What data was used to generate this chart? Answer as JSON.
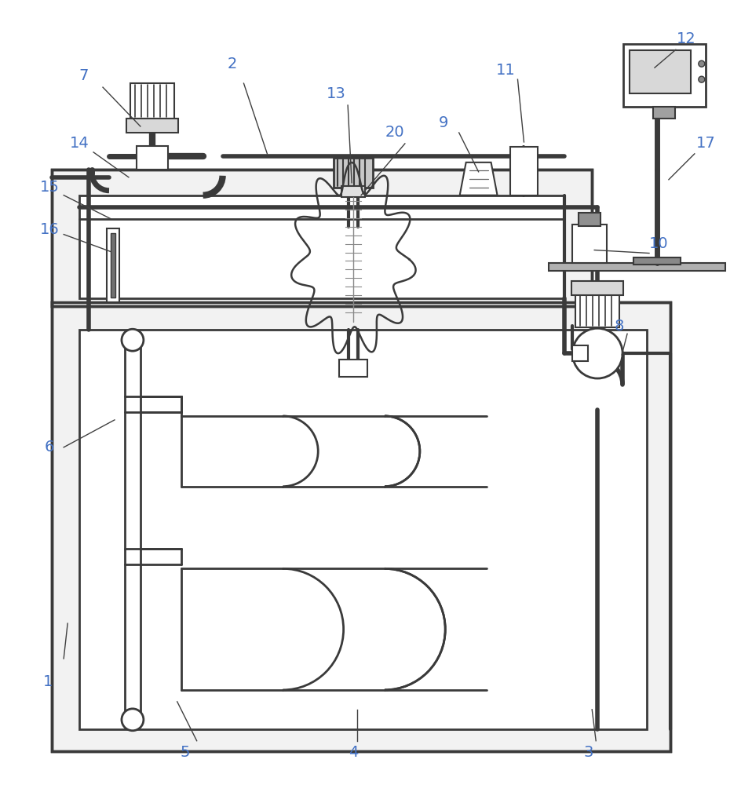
{
  "bg_color": "#ffffff",
  "lc": "#3a3a3a",
  "lc2": "#555555",
  "blue": "#4472c4",
  "figsize": [
    9.58,
    10.0
  ],
  "dpi": 100,
  "labels": [
    [
      "1",
      60,
      870
    ],
    [
      "2",
      295,
      80
    ],
    [
      "3",
      750,
      960
    ],
    [
      "4",
      450,
      960
    ],
    [
      "5",
      235,
      960
    ],
    [
      "6",
      62,
      570
    ],
    [
      "7",
      105,
      95
    ],
    [
      "8",
      790,
      415
    ],
    [
      "9",
      565,
      155
    ],
    [
      "10",
      840,
      310
    ],
    [
      "11",
      645,
      88
    ],
    [
      "12",
      875,
      48
    ],
    [
      "13",
      428,
      118
    ],
    [
      "14",
      100,
      182
    ],
    [
      "15",
      62,
      238
    ],
    [
      "16",
      62,
      292
    ],
    [
      "17",
      900,
      182
    ],
    [
      "20",
      503,
      168
    ]
  ],
  "leader_lines": [
    [
      "1",
      80,
      840,
      85,
      795
    ],
    [
      "2",
      310,
      105,
      340,
      195
    ],
    [
      "3",
      760,
      945,
      755,
      905
    ],
    [
      "4",
      455,
      945,
      455,
      905
    ],
    [
      "5",
      250,
      945,
      225,
      895
    ],
    [
      "6",
      80,
      570,
      145,
      535
    ],
    [
      "7",
      130,
      110,
      178,
      160
    ],
    [
      "8",
      800,
      425,
      793,
      452
    ],
    [
      "9",
      585,
      168,
      610,
      218
    ],
    [
      "10",
      828,
      322,
      758,
      318
    ],
    [
      "11",
      660,
      100,
      668,
      180
    ],
    [
      "12",
      862,
      62,
      835,
      85
    ],
    [
      "13",
      443,
      133,
      448,
      232
    ],
    [
      "14",
      118,
      193,
      163,
      225
    ],
    [
      "15",
      80,
      248,
      140,
      278
    ],
    [
      "16",
      80,
      298,
      140,
      320
    ],
    [
      "17",
      886,
      195,
      853,
      228
    ],
    [
      "20",
      516,
      182,
      460,
      248
    ]
  ]
}
